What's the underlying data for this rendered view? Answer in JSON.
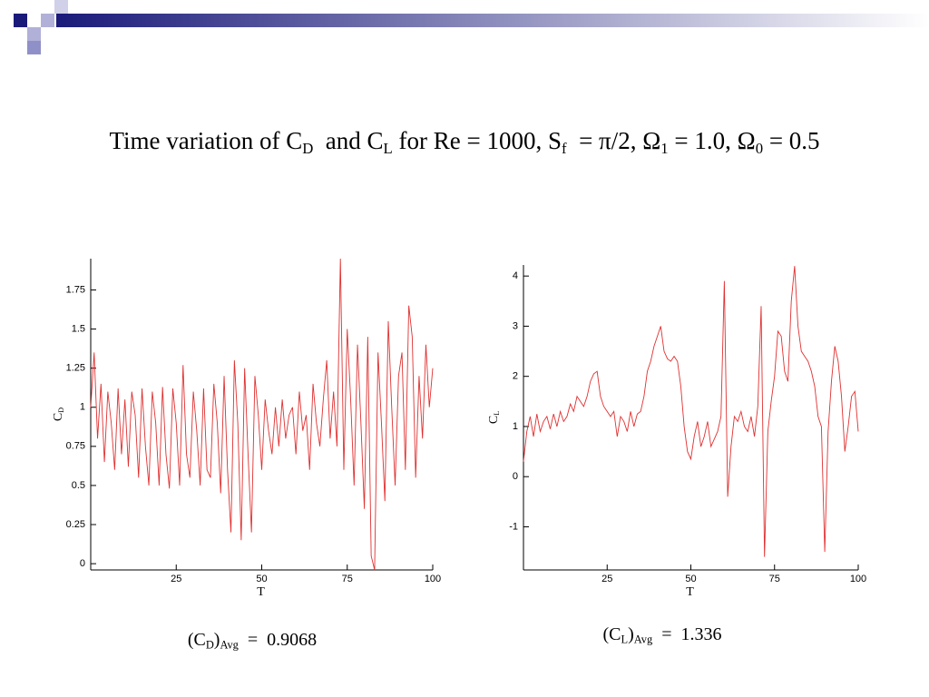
{
  "title": [
    [
      "Time variation of C",
      "D"
    ],
    [
      "  and C",
      "L"
    ],
    [
      " for Re = 1000, S",
      "f"
    ],
    [
      "  = π/2, Ω",
      "1"
    ],
    [
      " = 1.0, Ω",
      "0"
    ],
    [
      " = 0.5"
    ]
  ],
  "chart_data": [
    {
      "type": "line",
      "color": "#e03030",
      "x_label": "T",
      "y_label": [
        "C",
        "D"
      ],
      "annotation": [
        [
          "(C",
          "D"
        ],
        [
          ")",
          "Avg"
        ],
        [
          "  =  0.9068"
        ]
      ],
      "xlim": [
        0,
        100
      ],
      "xticks": [
        25,
        50,
        75,
        100
      ],
      "ylim": [
        -0.04,
        1.95
      ],
      "yticks": [
        0,
        0.25,
        0.5,
        0.75,
        1,
        1.25,
        1.5,
        1.75
      ],
      "x": [
        0,
        1,
        2,
        3,
        4,
        5,
        6,
        7,
        8,
        9,
        10,
        11,
        12,
        13,
        14,
        15,
        16,
        17,
        18,
        19,
        20,
        21,
        22,
        23,
        24,
        25,
        26,
        27,
        28,
        29,
        30,
        31,
        32,
        33,
        34,
        35,
        36,
        37,
        38,
        39,
        40,
        41,
        42,
        43,
        44,
        45,
        46,
        47,
        48,
        49,
        50,
        51,
        52,
        53,
        54,
        55,
        56,
        57,
        58,
        59,
        60,
        61,
        62,
        63,
        64,
        65,
        66,
        67,
        68,
        69,
        70,
        71,
        72,
        73,
        74,
        75,
        76,
        77,
        78,
        79,
        80,
        81,
        82,
        83,
        84,
        85,
        86,
        87,
        88,
        89,
        90,
        91,
        92,
        93,
        94,
        95,
        96,
        97,
        98,
        99,
        100
      ],
      "values": [
        1.0,
        1.35,
        0.8,
        1.15,
        0.65,
        1.1,
        0.9,
        0.6,
        1.12,
        0.7,
        1.05,
        0.62,
        1.1,
        0.95,
        0.55,
        1.12,
        0.75,
        0.5,
        1.1,
        0.9,
        0.5,
        1.13,
        0.7,
        0.48,
        1.12,
        0.9,
        0.5,
        1.27,
        0.7,
        0.55,
        1.1,
        0.85,
        0.5,
        1.12,
        0.6,
        0.55,
        1.15,
        0.9,
        0.45,
        1.2,
        0.6,
        0.2,
        1.3,
        0.9,
        0.15,
        1.25,
        0.7,
        0.2,
        1.2,
        0.95,
        0.6,
        1.05,
        0.85,
        0.7,
        1.0,
        0.75,
        1.05,
        0.8,
        0.95,
        1.0,
        0.7,
        1.1,
        0.85,
        0.95,
        0.6,
        1.15,
        0.9,
        0.75,
        1.05,
        1.3,
        0.8,
        1.1,
        0.75,
        1.95,
        0.6,
        1.5,
        1.05,
        0.5,
        1.4,
        0.9,
        0.35,
        1.45,
        0.05,
        -0.04,
        1.35,
        0.9,
        0.4,
        1.55,
        1.0,
        0.5,
        1.2,
        1.35,
        0.6,
        1.65,
        1.45,
        0.55,
        1.2,
        0.8,
        1.4,
        1.0,
        1.25
      ]
    },
    {
      "type": "line",
      "color": "#e03030",
      "x_label": "T",
      "y_label": [
        "C",
        "L"
      ],
      "annotation": [
        [
          "(C",
          "L"
        ],
        [
          ")",
          "Avg"
        ],
        [
          "  =  1.336"
        ]
      ],
      "xlim": [
        0,
        100
      ],
      "xticks": [
        25,
        50,
        75,
        100
      ],
      "ylim": [
        -1.86,
        4.22
      ],
      "yticks": [
        -1,
        0,
        1,
        2,
        3,
        4
      ],
      "x": [
        0,
        1,
        2,
        3,
        4,
        5,
        6,
        7,
        8,
        9,
        10,
        11,
        12,
        13,
        14,
        15,
        16,
        17,
        18,
        19,
        20,
        21,
        22,
        23,
        24,
        25,
        26,
        27,
        28,
        29,
        30,
        31,
        32,
        33,
        34,
        35,
        36,
        37,
        38,
        39,
        40,
        41,
        42,
        43,
        44,
        45,
        46,
        47,
        48,
        49,
        50,
        51,
        52,
        53,
        54,
        55,
        56,
        57,
        58,
        59,
        60,
        61,
        62,
        63,
        64,
        65,
        66,
        67,
        68,
        69,
        70,
        71,
        72,
        73,
        74,
        75,
        76,
        77,
        78,
        79,
        80,
        81,
        82,
        83,
        84,
        85,
        86,
        87,
        88,
        89,
        90,
        91,
        92,
        93,
        94,
        95,
        96,
        97,
        98,
        99,
        100
      ],
      "values": [
        0.3,
        0.9,
        1.2,
        0.8,
        1.25,
        0.9,
        1.1,
        1.2,
        0.95,
        1.25,
        1.0,
        1.3,
        1.1,
        1.2,
        1.45,
        1.3,
        1.6,
        1.5,
        1.4,
        1.6,
        1.9,
        2.05,
        2.1,
        1.6,
        1.4,
        1.3,
        1.2,
        1.3,
        0.8,
        1.2,
        1.1,
        0.9,
        1.3,
        1.0,
        1.25,
        1.3,
        1.6,
        2.1,
        2.3,
        2.6,
        2.8,
        3.0,
        2.5,
        2.35,
        2.3,
        2.4,
        2.3,
        1.8,
        1.0,
        0.5,
        0.35,
        0.8,
        1.1,
        0.6,
        0.8,
        1.1,
        0.6,
        0.75,
        0.9,
        1.2,
        3.9,
        -0.4,
        0.6,
        1.2,
        1.1,
        1.3,
        1.0,
        0.9,
        1.2,
        0.8,
        1.4,
        3.4,
        -1.6,
        0.9,
        1.5,
        2.0,
        2.9,
        2.8,
        2.1,
        1.9,
        3.5,
        4.2,
        3.0,
        2.5,
        2.4,
        2.3,
        2.1,
        1.8,
        1.2,
        1.0,
        -1.5,
        0.9,
        1.9,
        2.6,
        2.3,
        1.6,
        0.5,
        1.0,
        1.6,
        1.7,
        0.9
      ]
    }
  ]
}
